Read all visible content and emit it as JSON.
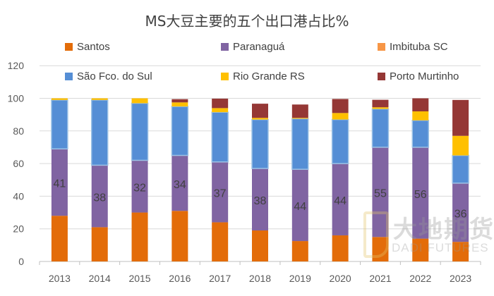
{
  "chart_data": {
    "type": "stacked-bar",
    "title": "MS大豆主要的五个出口港占比%",
    "categories": [
      "2013",
      "2014",
      "2015",
      "2016",
      "2017",
      "2018",
      "2019",
      "2020",
      "2021",
      "2022",
      "2023"
    ],
    "ylim": [
      0,
      120
    ],
    "yticks": [
      "0",
      "20",
      "40",
      "60",
      "80",
      "100",
      "120"
    ],
    "grid": true,
    "legend_position": "top",
    "series": [
      {
        "name": "Santos",
        "color": "#E36C09",
        "values": [
          28,
          21,
          30,
          31,
          24,
          19,
          12.5,
          16,
          15,
          14,
          12
        ]
      },
      {
        "name": "Paranaguá",
        "color": "#8064A2",
        "values": [
          41,
          38,
          32,
          34,
          37,
          38,
          44,
          44,
          55,
          56,
          36
        ],
        "labels": [
          "41",
          "38",
          "32",
          "34",
          "37",
          "38",
          "44",
          "44",
          "55",
          "56",
          "36"
        ]
      },
      {
        "name": "Imbituba SC",
        "color": "#F79646",
        "values": [
          0,
          0,
          0,
          0,
          0,
          0,
          0,
          0,
          0,
          0,
          0
        ]
      },
      {
        "name": "São Fco. do Sul",
        "color": "#558ED5",
        "values": [
          30,
          40,
          35,
          30,
          30.5,
          30,
          31,
          27,
          23.5,
          16.5,
          17
        ]
      },
      {
        "name": "Rio Grande RS",
        "color": "#FFC000",
        "values": [
          1,
          1,
          3,
          2.5,
          2.5,
          1,
          0.5,
          4,
          1,
          5.5,
          12
        ]
      },
      {
        "name": "Porto Murtinho",
        "color": "#953735",
        "values": [
          0,
          0,
          0,
          2,
          5.8,
          8.7,
          8.2,
          8.6,
          4.6,
          8,
          22
        ]
      }
    ]
  },
  "watermark": {
    "cn": "大地期货",
    "en": "DADI FUTURES"
  }
}
